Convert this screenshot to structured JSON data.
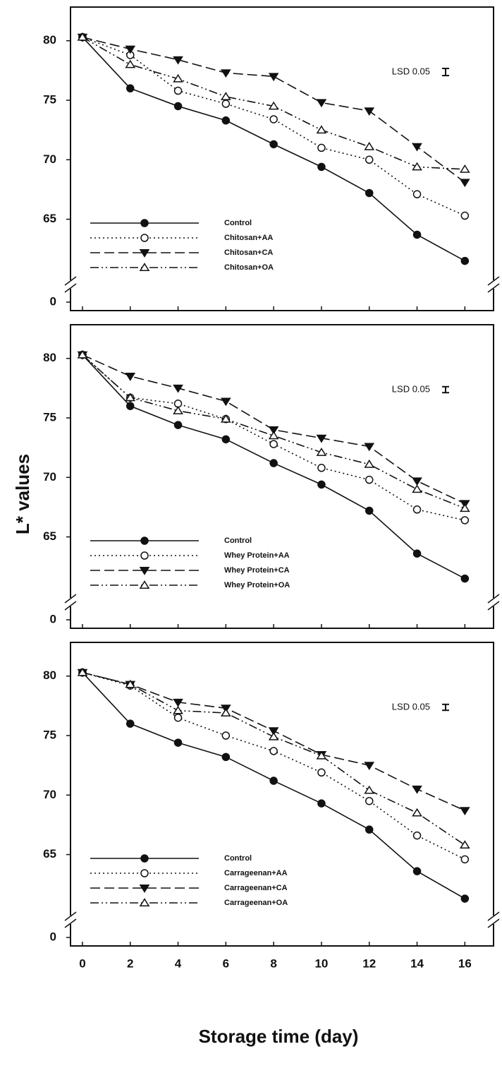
{
  "figure": {
    "ylabel": "L* values",
    "xlabel": "Storage time (day)"
  },
  "chart_data": [
    {
      "type": "line",
      "x": [
        0,
        2,
        4,
        6,
        8,
        10,
        12,
        14,
        16
      ],
      "xlim": [
        -0.5,
        17.2
      ],
      "xticks": [
        0,
        2,
        4,
        6,
        8,
        10,
        12,
        14,
        16
      ],
      "xtick_labels": false,
      "ylim": [
        0,
        82
      ],
      "ybreak": [
        0,
        61
      ],
      "yticks": [
        0,
        65,
        70,
        75,
        80
      ],
      "annotation": "LSD 0.05",
      "lsd": 0.6,
      "series": [
        {
          "name": "Control",
          "color": "#111111",
          "dash": "solid",
          "marker": "circle-filled",
          "values": [
            80.3,
            76.0,
            74.5,
            73.3,
            71.3,
            69.4,
            67.2,
            63.7,
            61.5
          ]
        },
        {
          "name": "Chitosan+AA",
          "color": "#111111",
          "dash": "dotted",
          "marker": "circle-open",
          "values": [
            80.3,
            78.8,
            75.8,
            74.7,
            73.4,
            71.0,
            70.0,
            67.1,
            65.3
          ]
        },
        {
          "name": "Chitosan+CA",
          "color": "#111111",
          "dash": "dashed",
          "marker": "triangle-down-filled",
          "values": [
            80.3,
            79.3,
            78.4,
            77.3,
            77.0,
            74.8,
            74.1,
            71.1,
            68.1
          ]
        },
        {
          "name": "Chitosan+OA",
          "color": "#111111",
          "dash": "dash-dot-dot",
          "marker": "triangle-up-open",
          "values": [
            80.3,
            78.0,
            76.8,
            75.3,
            74.5,
            72.5,
            71.1,
            69.4,
            69.2
          ]
        }
      ]
    },
    {
      "type": "line",
      "x": [
        0,
        2,
        4,
        6,
        8,
        10,
        12,
        14,
        16
      ],
      "xlim": [
        -0.5,
        17.2
      ],
      "xticks": [
        0,
        2,
        4,
        6,
        8,
        10,
        12,
        14,
        16
      ],
      "xtick_labels": false,
      "ylim": [
        0,
        82
      ],
      "ybreak": [
        0,
        61
      ],
      "yticks": [
        0,
        65,
        70,
        75,
        80
      ],
      "annotation": "LSD 0.05",
      "lsd": 0.5,
      "series": [
        {
          "name": "Control",
          "color": "#111111",
          "dash": "solid",
          "marker": "circle-filled",
          "values": [
            80.3,
            76.0,
            74.4,
            73.2,
            71.2,
            69.4,
            67.2,
            63.6,
            61.5
          ]
        },
        {
          "name": "Whey Protein+AA",
          "color": "#111111",
          "dash": "dotted",
          "marker": "circle-open",
          "values": [
            80.3,
            76.7,
            76.2,
            74.9,
            72.8,
            70.8,
            69.8,
            67.3,
            66.4
          ]
        },
        {
          "name": "Whey Protein+CA",
          "color": "#111111",
          "dash": "dashed",
          "marker": "triangle-down-filled",
          "values": [
            80.3,
            78.5,
            77.5,
            76.4,
            74.0,
            73.3,
            72.6,
            69.7,
            67.8
          ]
        },
        {
          "name": "Whey Protein+OA",
          "color": "#111111",
          "dash": "dash-dot-dot",
          "marker": "triangle-up-open",
          "values": [
            80.3,
            76.7,
            75.6,
            74.9,
            73.5,
            72.1,
            71.1,
            69.0,
            67.4
          ]
        }
      ]
    },
    {
      "type": "line",
      "x": [
        0,
        2,
        4,
        6,
        8,
        10,
        12,
        14,
        16
      ],
      "xlim": [
        -0.5,
        17.2
      ],
      "xticks": [
        0,
        2,
        4,
        6,
        8,
        10,
        12,
        14,
        16
      ],
      "xtick_labels": true,
      "ylim": [
        0,
        82
      ],
      "ybreak": [
        0,
        61
      ],
      "yticks": [
        0,
        65,
        70,
        75,
        80
      ],
      "annotation": "LSD 0.05",
      "lsd": 0.5,
      "series": [
        {
          "name": "Control",
          "color": "#111111",
          "dash": "solid",
          "marker": "circle-filled",
          "values": [
            80.3,
            76.0,
            74.4,
            73.2,
            71.2,
            69.3,
            67.1,
            63.6,
            61.3
          ]
        },
        {
          "name": "Carrageenan+AA",
          "color": "#111111",
          "dash": "dotted",
          "marker": "circle-open",
          "values": [
            80.3,
            79.2,
            76.5,
            75.0,
            73.7,
            71.9,
            69.5,
            66.6,
            64.6
          ]
        },
        {
          "name": "Carrageenan+CA",
          "color": "#111111",
          "dash": "dashed",
          "marker": "triangle-down-filled",
          "values": [
            80.3,
            79.3,
            77.8,
            77.3,
            75.4,
            73.4,
            72.5,
            70.5,
            68.7
          ]
        },
        {
          "name": "Carrageenan+OA",
          "color": "#111111",
          "dash": "dash-dot-dot",
          "marker": "triangle-up-open",
          "values": [
            80.3,
            79.3,
            77.1,
            76.9,
            74.9,
            73.3,
            70.4,
            68.5,
            65.8
          ]
        }
      ]
    }
  ]
}
